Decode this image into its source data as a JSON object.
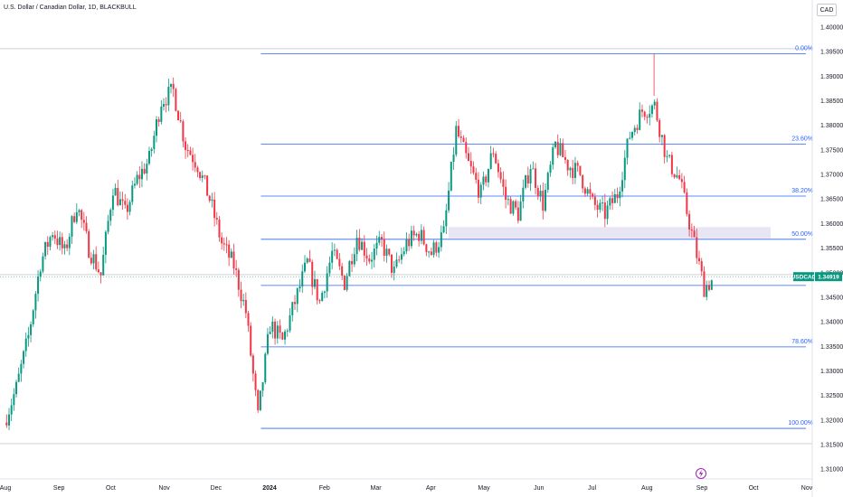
{
  "header": {
    "title": "U.S. Dollar / Canadian Dollar, 1D, BLACKBULL",
    "currency": "CAD"
  },
  "price_tag": {
    "symbol": "USDCAD",
    "price": "1.34919",
    "color": "#089981"
  },
  "colors": {
    "up": "#089981",
    "down": "#f23645",
    "fib_line": "#2962ff",
    "zone": "#e8e6f5"
  },
  "chart_data": {
    "type": "candlestick",
    "title": "U.S. Dollar / Canadian Dollar, 1D, BLACKBULL",
    "y_unit": "CAD",
    "ylim": [
      1.3075,
      1.4055
    ],
    "y_ticks": [
      "1.40000",
      "1.39500",
      "1.39000",
      "1.38500",
      "1.38000",
      "1.37500",
      "1.37000",
      "1.36500",
      "1.36000",
      "1.35500",
      "1.35000",
      "1.34500",
      "1.34000",
      "1.33500",
      "1.33000",
      "1.32500",
      "1.32000",
      "1.31500",
      "1.31000"
    ],
    "x_ticks": [
      {
        "label": "Aug",
        "date": "2023-08-01"
      },
      {
        "label": "Sep",
        "date": "2023-09-01"
      },
      {
        "label": "Oct",
        "date": "2023-10-01"
      },
      {
        "label": "Nov",
        "date": "2023-11-01"
      },
      {
        "label": "Dec",
        "date": "2023-12-01"
      },
      {
        "label": "2024",
        "date": "2024-01-01",
        "bold": true
      },
      {
        "label": "Feb",
        "date": "2024-02-01"
      },
      {
        "label": "Mar",
        "date": "2024-03-01"
      },
      {
        "label": "Apr",
        "date": "2024-04-01"
      },
      {
        "label": "May",
        "date": "2024-05-01"
      },
      {
        "label": "Jun",
        "date": "2024-06-01"
      },
      {
        "label": "Jul",
        "date": "2024-07-01"
      },
      {
        "label": "Aug",
        "date": "2024-08-01"
      },
      {
        "label": "Sep",
        "date": "2024-09-01"
      },
      {
        "label": "Oct",
        "date": "2024-10-01"
      },
      {
        "label": "Nov",
        "date": "2024-11-01"
      }
    ],
    "fib_levels": [
      {
        "label": "0.00%",
        "price": 1.3946
      },
      {
        "label": "23.60%",
        "price": 1.3762
      },
      {
        "label": "38.20%",
        "price": 1.3656
      },
      {
        "label": "50.00%",
        "price": 1.3568
      },
      {
        "label": "",
        "price": 1.3474
      },
      {
        "label": "78.60%",
        "price": 1.3349
      },
      {
        "label": "100.00%",
        "price": 1.3183
      }
    ],
    "fib_start_date": "2023-12-27",
    "zone": {
      "start_date": "2024-04-11",
      "end_date": "2024-10-11",
      "top": 1.3593,
      "bottom": 1.357
    },
    "current_price": 1.34919,
    "horizontal_lines": [
      1.3496,
      1.3956,
      1.3152
    ],
    "series": [
      {
        "name": "USDCAD",
        "ohlc_points": [
          [
            "2023-08-01",
            1.3195,
            1.3265
          ],
          [
            "2023-08-08",
            1.3265,
            1.337
          ],
          [
            "2023-08-15",
            1.337,
            1.352
          ],
          [
            "2023-08-22",
            1.352,
            1.3585
          ],
          [
            "2023-08-29",
            1.3585,
            1.354
          ],
          [
            "2023-09-05",
            1.354,
            1.364
          ],
          [
            "2023-09-12",
            1.364,
            1.355
          ],
          [
            "2023-09-19",
            1.355,
            1.3495
          ],
          [
            "2023-09-26",
            1.3495,
            1.3675
          ],
          [
            "2023-10-03",
            1.3675,
            1.362
          ],
          [
            "2023-10-10",
            1.362,
            1.369
          ],
          [
            "2023-10-17",
            1.369,
            1.373
          ],
          [
            "2023-10-24",
            1.373,
            1.385
          ],
          [
            "2023-10-31",
            1.385,
            1.387
          ],
          [
            "2023-11-07",
            1.387,
            1.376
          ],
          [
            "2023-11-14",
            1.376,
            1.372
          ],
          [
            "2023-11-21",
            1.372,
            1.365
          ],
          [
            "2023-11-28",
            1.365,
            1.356
          ],
          [
            "2023-12-05",
            1.356,
            1.3515
          ],
          [
            "2023-12-12",
            1.3515,
            1.342
          ],
          [
            "2023-12-19",
            1.342,
            1.3205
          ],
          [
            "2023-12-26",
            1.3205,
            1.3395
          ],
          [
            "2024-01-02",
            1.3395,
            1.336
          ],
          [
            "2024-01-09",
            1.336,
            1.344
          ],
          [
            "2024-01-16",
            1.344,
            1.352
          ],
          [
            "2024-01-23",
            1.352,
            1.344
          ],
          [
            "2024-01-30",
            1.344,
            1.354
          ],
          [
            "2024-02-06",
            1.354,
            1.348
          ],
          [
            "2024-02-13",
            1.348,
            1.3575
          ],
          [
            "2024-02-20",
            1.3575,
            1.353
          ],
          [
            "2024-02-27",
            1.353,
            1.356
          ],
          [
            "2024-03-05",
            1.356,
            1.35
          ],
          [
            "2024-03-12",
            1.35,
            1.356
          ],
          [
            "2024-03-19",
            1.356,
            1.358
          ],
          [
            "2024-03-26",
            1.358,
            1.354
          ],
          [
            "2024-04-02",
            1.354,
            1.358
          ],
          [
            "2024-04-09",
            1.358,
            1.379
          ],
          [
            "2024-04-16",
            1.379,
            1.372
          ],
          [
            "2024-04-23",
            1.372,
            1.366
          ],
          [
            "2024-04-30",
            1.366,
            1.375
          ],
          [
            "2024-05-07",
            1.375,
            1.365
          ],
          [
            "2024-05-14",
            1.365,
            1.362
          ],
          [
            "2024-05-21",
            1.362,
            1.372
          ],
          [
            "2024-05-28",
            1.372,
            1.364
          ],
          [
            "2024-06-04",
            1.364,
            1.376
          ],
          [
            "2024-06-11",
            1.376,
            1.372
          ],
          [
            "2024-06-18",
            1.372,
            1.37
          ],
          [
            "2024-06-25",
            1.37,
            1.364
          ],
          [
            "2024-07-02",
            1.364,
            1.362
          ],
          [
            "2024-07-09",
            1.362,
            1.366
          ],
          [
            "2024-07-16",
            1.366,
            1.378
          ],
          [
            "2024-07-23",
            1.378,
            1.383
          ],
          [
            "2024-07-30",
            1.383,
            1.384
          ],
          [
            "2024-08-06",
            1.384,
            1.373
          ],
          [
            "2024-08-13",
            1.373,
            1.369
          ],
          [
            "2024-08-20",
            1.369,
            1.358
          ],
          [
            "2024-08-27",
            1.358,
            1.347
          ],
          [
            "2024-09-03",
            1.347,
            1.3492
          ]
        ]
      }
    ]
  }
}
